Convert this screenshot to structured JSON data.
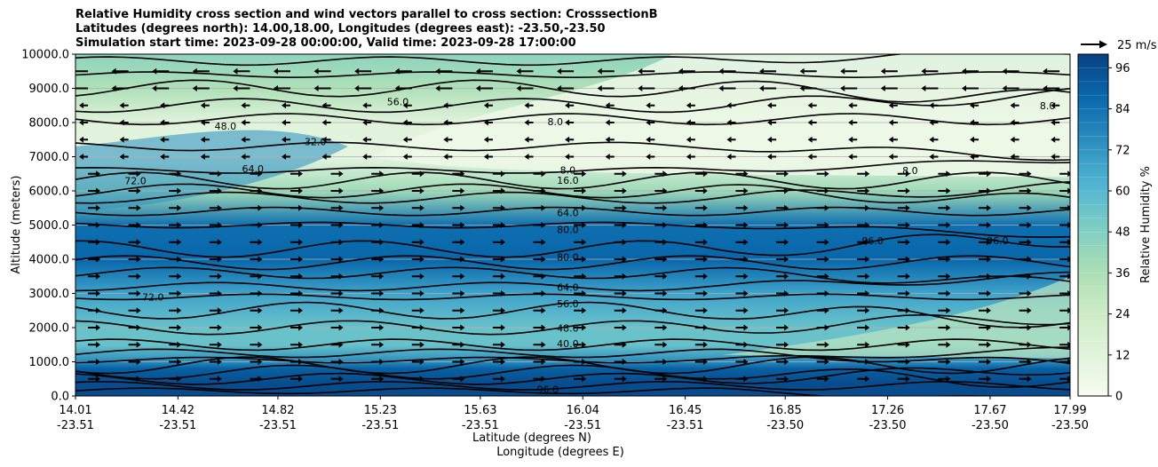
{
  "chart_data": {
    "type": "heatmap",
    "title_lines": [
      "Relative Humidity cross section and wind vectors parallel to cross section: CrosssectionB",
      "Latitudes (degrees north): 14.00,18.00, Longitudes (degrees east): -23.50,-23.50",
      "Simulation start time: 2023-09-28 00:00:00, Valid time: 2023-09-28 17:00:00"
    ],
    "xlabel_lat": "Latitude (degrees N)",
    "xlabel_lon": "Longitude (degrees E)",
    "ylabel": "Altitude (meters)",
    "colorbar_label": "Relative Humidity %",
    "wind_key_label": "25 m/s",
    "x_ticks": [
      {
        "lat": "14.01",
        "lon": "-23.51"
      },
      {
        "lat": "14.42",
        "lon": "-23.51"
      },
      {
        "lat": "14.82",
        "lon": "-23.51"
      },
      {
        "lat": "15.23",
        "lon": "-23.51"
      },
      {
        "lat": "15.63",
        "lon": "-23.51"
      },
      {
        "lat": "16.04",
        "lon": "-23.51"
      },
      {
        "lat": "16.45",
        "lon": "-23.51"
      },
      {
        "lat": "16.85",
        "lon": "-23.50"
      },
      {
        "lat": "17.26",
        "lon": "-23.50"
      },
      {
        "lat": "17.67",
        "lon": "-23.50"
      },
      {
        "lat": "17.99",
        "lon": "-23.50"
      }
    ],
    "x_range": [
      14.01,
      17.99
    ],
    "y_ticks": [
      "0.0",
      "1000.0",
      "2000.0",
      "3000.0",
      "4000.0",
      "5000.0",
      "6000.0",
      "7000.0",
      "8000.0",
      "9000.0",
      "10000.0"
    ],
    "y_range": [
      0,
      10000
    ],
    "colorbar_ticks": [
      "0",
      "12",
      "24",
      "36",
      "48",
      "60",
      "72",
      "84",
      "96"
    ],
    "colorbar_range": [
      0,
      100
    ],
    "grid": "horizontal",
    "colormap": [
      "#f7fcf0",
      "#e0f3db",
      "#ccebc5",
      "#a8ddb5",
      "#7bccc4",
      "#4eb3d3",
      "#2b8cbe",
      "#0868ac",
      "#084081"
    ],
    "rh_profile_rows": [
      {
        "alt": 0,
        "rh": 97
      },
      {
        "alt": 400,
        "rh": 96
      },
      {
        "alt": 800,
        "rh": 90
      },
      {
        "alt": 1000,
        "rh": 75
      },
      {
        "alt": 1500,
        "rh": 55
      },
      {
        "alt": 2000,
        "rh": 55
      },
      {
        "alt": 3000,
        "rh": 68
      },
      {
        "alt": 4000,
        "rh": 88
      },
      {
        "alt": 5000,
        "rh": 85
      },
      {
        "alt": 6000,
        "rh": 40
      },
      {
        "alt": 7000,
        "rh": 10
      },
      {
        "alt": 8000,
        "rh": 12
      },
      {
        "alt": 9000,
        "rh": 35
      },
      {
        "alt": 10000,
        "rh": 45
      }
    ],
    "contour_labels": [
      {
        "text": "96.0",
        "lat": 15.9,
        "alt": 200
      },
      {
        "text": "40.0",
        "lat": 15.98,
        "alt": 1530
      },
      {
        "text": "48.0",
        "lat": 15.98,
        "alt": 1990
      },
      {
        "text": "56.0",
        "lat": 15.98,
        "alt": 2700
      },
      {
        "text": "64.0",
        "lat": 15.98,
        "alt": 3180
      },
      {
        "text": "80.0",
        "lat": 15.98,
        "alt": 4070
      },
      {
        "text": "80.0",
        "lat": 15.98,
        "alt": 4870
      },
      {
        "text": "64.0",
        "lat": 15.98,
        "alt": 5370
      },
      {
        "text": "16.0",
        "lat": 15.98,
        "alt": 6310
      },
      {
        "text": "8.0",
        "lat": 15.98,
        "alt": 6610
      },
      {
        "text": "8.0",
        "lat": 15.93,
        "alt": 8020
      },
      {
        "text": "56.0",
        "lat": 15.3,
        "alt": 8610
      },
      {
        "text": "32.0",
        "lat": 14.97,
        "alt": 7440
      },
      {
        "text": "64.0",
        "lat": 14.72,
        "alt": 6650
      },
      {
        "text": "72.0",
        "lat": 14.25,
        "alt": 6300
      },
      {
        "text": "72.0",
        "lat": 14.32,
        "alt": 2900
      },
      {
        "text": "96.0",
        "lat": 17.2,
        "alt": 4550
      },
      {
        "text": "96.0",
        "lat": 17.7,
        "alt": 4550
      },
      {
        "text": "8.0",
        "lat": 17.35,
        "alt": 6600
      },
      {
        "text": "8.0",
        "lat": 17.9,
        "alt": 8500
      },
      {
        "text": "48.0",
        "lat": 14.61,
        "alt": 7900
      }
    ]
  }
}
